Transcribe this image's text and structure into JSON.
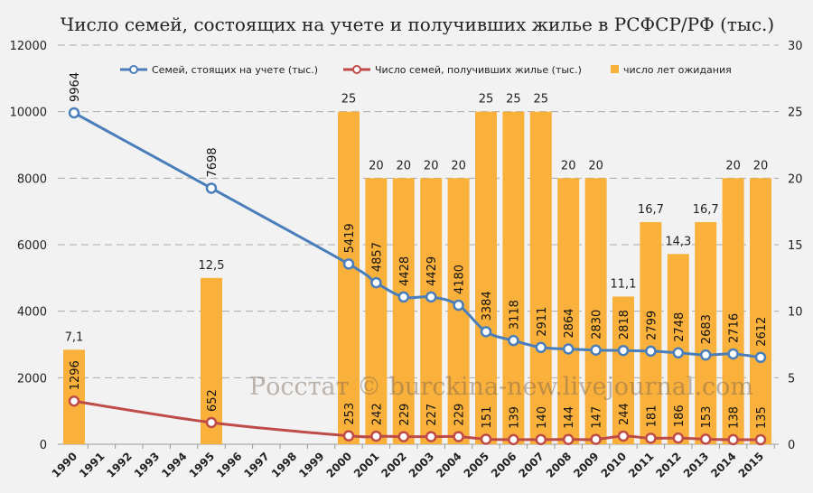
{
  "chart_data": {
    "type": "bar+line",
    "title": "Число семей, состоящих на учете и получивших жилье в РСФСР/РФ (тыс.)",
    "categories": [
      "1990",
      "1991",
      "1992",
      "1993",
      "1994",
      "1995",
      "1996",
      "1997",
      "1998",
      "1999",
      "2000",
      "2001",
      "2002",
      "2003",
      "2004",
      "2005",
      "2006",
      "2007",
      "2008",
      "2009",
      "2010",
      "2011",
      "2012",
      "2013",
      "2014",
      "2015"
    ],
    "left_axis": {
      "min": 0,
      "max": 12000,
      "ticks": [
        "0",
        "2000",
        "4000",
        "6000",
        "8000",
        "10000",
        "12000"
      ]
    },
    "right_axis": {
      "min": 0,
      "max": 30,
      "ticks": [
        "0",
        "5",
        "10",
        "15",
        "20",
        "25",
        "30"
      ]
    },
    "grid": "horizontal dashed",
    "legend_position": "top",
    "series": [
      {
        "name": "Семей, стоящих на учете (тыс.)",
        "type": "line",
        "axis": "left",
        "color": "#4a7ebb",
        "values": [
          9964,
          null,
          null,
          null,
          null,
          7698,
          null,
          null,
          null,
          null,
          5419,
          4857,
          4428,
          4429,
          4180,
          3384,
          3118,
          2911,
          2864,
          2830,
          2818,
          2799,
          2748,
          2683,
          2716,
          2612
        ]
      },
      {
        "name": "Число семей, получивших жилье (тыс.)",
        "type": "line",
        "axis": "left",
        "color": "#be4b48",
        "values": [
          1296,
          null,
          null,
          null,
          null,
          652,
          null,
          null,
          null,
          null,
          253,
          242,
          229,
          227,
          229,
          151,
          139,
          140,
          144,
          147,
          244,
          181,
          186,
          153,
          138,
          135
        ]
      },
      {
        "name": "число лет ожидания",
        "type": "bar",
        "axis": "right",
        "color": "#f9b13b",
        "values": [
          7.1,
          null,
          null,
          null,
          null,
          12.5,
          null,
          null,
          null,
          null,
          25,
          20,
          20,
          20,
          20,
          25,
          25,
          25,
          20,
          20,
          11.1,
          16.7,
          14.3,
          16.7,
          20,
          20
        ],
        "labels": [
          "7,1",
          "",
          "",
          "",
          "",
          "12,5",
          "",
          "",
          "",
          "",
          "25",
          "20",
          "20",
          "20",
          "20",
          "25",
          "25",
          "25",
          "20",
          "20",
          "11,1",
          "16,7",
          "14,3",
          "16,7",
          "20",
          "20"
        ]
      }
    ],
    "watermark": "Росстат © burckina-new.livejournal.com"
  }
}
